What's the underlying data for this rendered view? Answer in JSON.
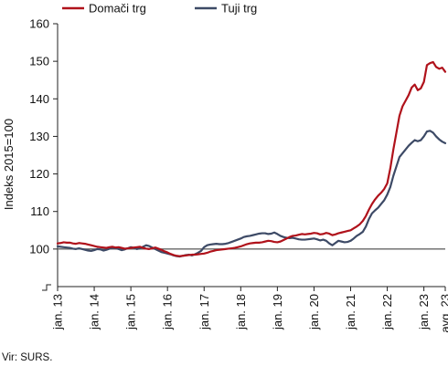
{
  "chart_data": {
    "type": "line",
    "ylabel": "Indeks 2015=100",
    "ylim": [
      90,
      160
    ],
    "y_ticks": [
      "160",
      "150",
      "140",
      "130",
      "120",
      "110",
      "100"
    ],
    "axis_break_below": true,
    "x_ticks": [
      "jan. 13",
      "jan. 14",
      "jan. 15",
      "jan. 16",
      "jan. 17",
      "jan. 18",
      "jan. 19",
      "jan. 20",
      "jan. 21",
      "jan. 22",
      "jan. 23",
      "avg. 23"
    ],
    "x_tick_months": [
      0,
      12,
      24,
      36,
      48,
      60,
      72,
      84,
      96,
      108,
      120,
      127
    ],
    "x_start": "jan. 13",
    "x_end": "avg. 23",
    "grid": "none",
    "legend_position": "top-left",
    "reference_line": 100,
    "reference_color": "#666666",
    "source": "Vir: SURS.",
    "series": [
      {
        "name": "Domači trg",
        "color": "#b0121b",
        "values": [
          101.5,
          101.6,
          101.8,
          101.7,
          101.7,
          101.5,
          101.4,
          101.6,
          101.5,
          101.4,
          101.2,
          101.0,
          100.8,
          100.6,
          100.5,
          100.4,
          100.3,
          100.5,
          100.6,
          100.4,
          100.5,
          100.3,
          100.1,
          100.2,
          100.3,
          100.4,
          100.5,
          100.6,
          100.3,
          100.1,
          100.0,
          100.2,
          100.4,
          100.1,
          99.8,
          99.4,
          99.1,
          98.7,
          98.4,
          98.2,
          98.1,
          98.2,
          98.3,
          98.4,
          98.5,
          98.5,
          98.6,
          98.7,
          98.8,
          99.0,
          99.3,
          99.5,
          99.7,
          99.8,
          99.9,
          100.0,
          100.1,
          100.2,
          100.3,
          100.5,
          100.7,
          101.0,
          101.3,
          101.5,
          101.6,
          101.7,
          101.7,
          101.8,
          102.0,
          102.2,
          102.1,
          101.9,
          101.8,
          102.0,
          102.4,
          102.8,
          103.2,
          103.5,
          103.6,
          103.8,
          104.0,
          103.9,
          104.0,
          104.1,
          104.3,
          104.2,
          103.9,
          104.0,
          104.3,
          104.1,
          103.7,
          103.9,
          104.2,
          104.4,
          104.6,
          104.8,
          105.0,
          105.5,
          106.0,
          106.6,
          107.5,
          108.8,
          110.5,
          112.0,
          113.2,
          114.2,
          115.0,
          116.0,
          117.5,
          121.5,
          126.5,
          131.0,
          135.5,
          138.0,
          139.5,
          141.0,
          143.0,
          143.8,
          142.3,
          142.8,
          144.5,
          149.0,
          149.5,
          149.8,
          148.5,
          148.0,
          148.3,
          147.2
        ]
      },
      {
        "name": "Tuji trg",
        "color": "#3d4a66",
        "values": [
          100.7,
          100.6,
          100.5,
          100.4,
          100.3,
          100.1,
          100.0,
          100.2,
          100.0,
          99.8,
          99.6,
          99.5,
          99.7,
          100.0,
          99.9,
          99.6,
          99.8,
          100.1,
          100.3,
          100.2,
          100.0,
          99.7,
          99.9,
          100.2,
          100.5,
          100.3,
          100.0,
          100.2,
          100.6,
          101.0,
          100.8,
          100.4,
          100.0,
          99.6,
          99.2,
          99.0,
          98.8,
          98.6,
          98.3,
          98.1,
          98.0,
          98.2,
          98.4,
          98.5,
          98.3,
          98.6,
          99.0,
          99.5,
          100.5,
          101.0,
          101.2,
          101.3,
          101.4,
          101.3,
          101.3,
          101.4,
          101.6,
          101.9,
          102.2,
          102.5,
          102.8,
          103.2,
          103.4,
          103.5,
          103.7,
          103.9,
          104.1,
          104.2,
          104.2,
          104.0,
          104.1,
          104.4,
          104.0,
          103.5,
          103.2,
          103.0,
          102.9,
          103.0,
          102.8,
          102.6,
          102.5,
          102.5,
          102.6,
          102.7,
          102.8,
          102.6,
          102.3,
          102.5,
          102.2,
          101.5,
          101.0,
          101.6,
          102.2,
          102.0,
          101.8,
          101.9,
          102.2,
          102.8,
          103.5,
          104.0,
          104.6,
          106.0,
          108.0,
          109.5,
          110.3,
          111.0,
          112.0,
          113.0,
          114.5,
          116.5,
          119.5,
          122.0,
          124.5,
          125.5,
          126.5,
          127.5,
          128.3,
          129.0,
          128.7,
          129.0,
          130.0,
          131.3,
          131.5,
          131.0,
          130.0,
          129.2,
          128.6,
          128.2
        ]
      }
    ]
  }
}
